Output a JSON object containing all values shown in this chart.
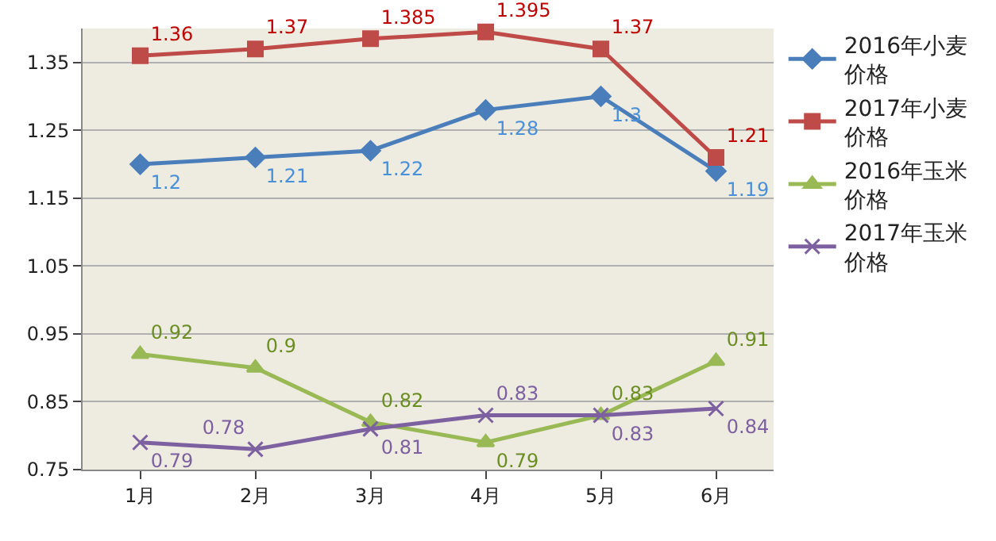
{
  "chart_data": {
    "type": "line",
    "categories": [
      "1月",
      "2月",
      "3月",
      "4月",
      "5月",
      "6月"
    ],
    "series": [
      {
        "name": "2016年小麦价格",
        "color": "#4a7ebb",
        "marker": "diamond",
        "values": [
          1.2,
          1.21,
          1.22,
          1.28,
          1.3,
          1.19
        ]
      },
      {
        "name": "2017年小麦价格",
        "color": "#be4b48",
        "marker": "square",
        "values": [
          1.36,
          1.37,
          1.385,
          1.395,
          1.37,
          1.21
        ]
      },
      {
        "name": "2016年玉米价格",
        "color": "#98b954",
        "marker": "triangle",
        "values": [
          0.92,
          0.9,
          0.82,
          0.79,
          0.83,
          0.91
        ]
      },
      {
        "name": "2017年玉米价格",
        "color": "#7d60a0",
        "marker": "cross",
        "values": [
          0.79,
          0.78,
          0.81,
          0.83,
          0.83,
          0.84
        ]
      }
    ],
    "ylim": [
      0.75,
      1.4
    ],
    "yticks": [
      0.75,
      0.85,
      0.95,
      1.05,
      1.15,
      1.25,
      1.35
    ],
    "grid": "y",
    "legend": "right",
    "data_labels": true
  }
}
